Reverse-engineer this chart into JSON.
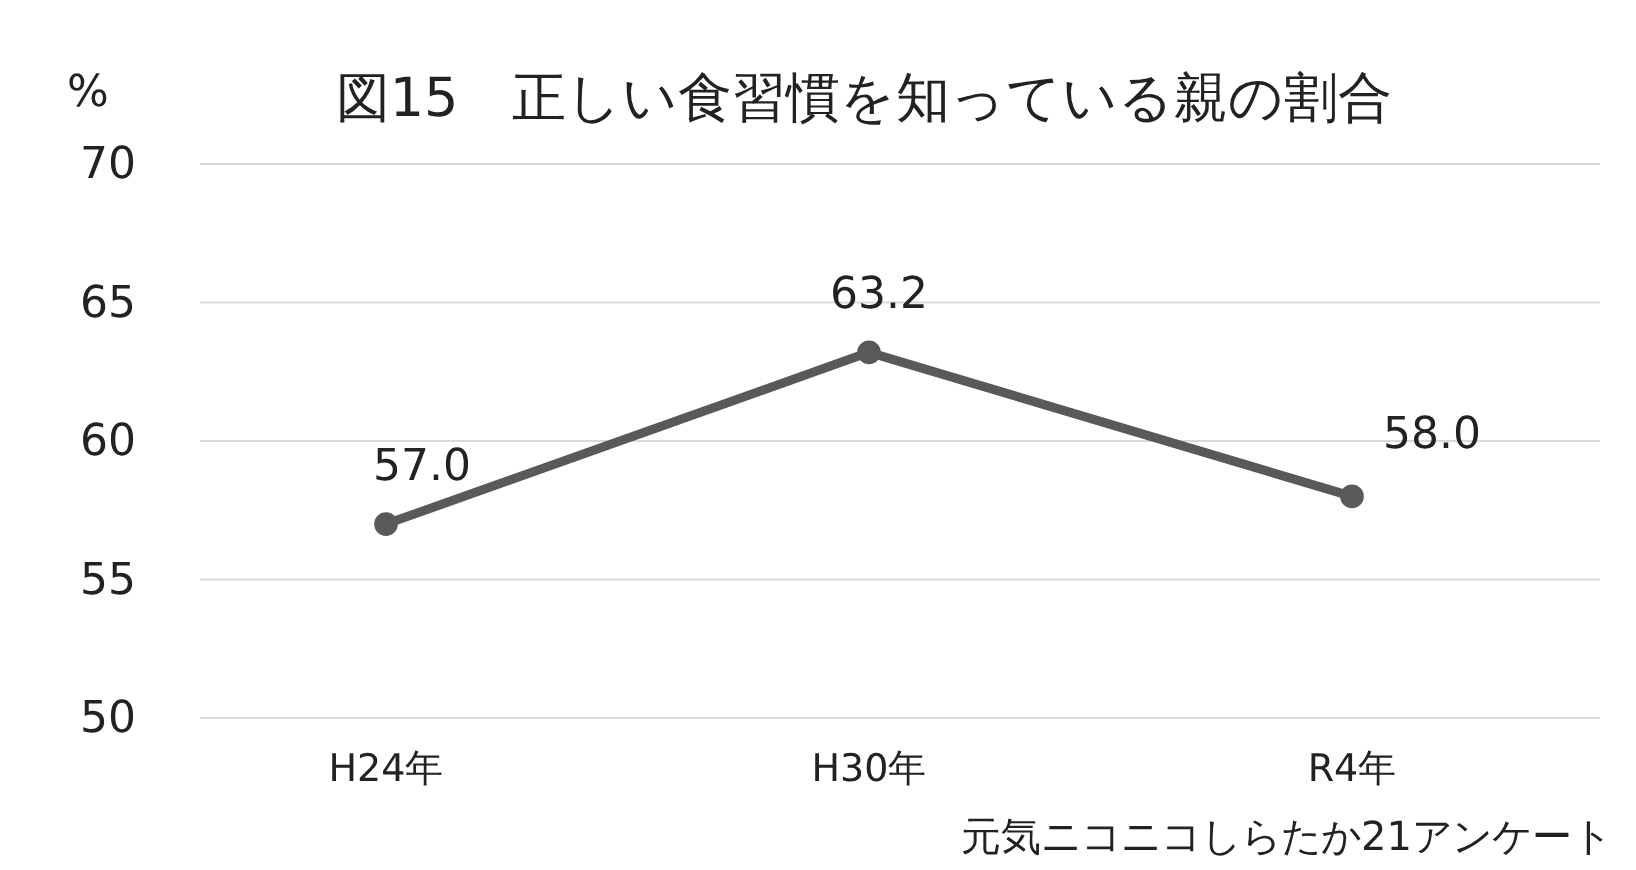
{
  "chart_data": {
    "type": "line",
    "title": "図15　正しい食習慣を知っている親の割合",
    "ylabel": "%",
    "categories": [
      "H24年",
      "H30年",
      "R4年"
    ],
    "series": [
      {
        "color": "#595959",
        "values": [
          57.0,
          63.2,
          58.0
        ]
      }
    ],
    "value_labels": [
      "57.0",
      "63.2",
      "58.0"
    ],
    "ylim": [
      50,
      70
    ],
    "yticks": [
      50,
      55,
      60,
      65,
      70
    ],
    "grid": "y",
    "marker": "circle",
    "line_style": "solid",
    "annotations": [
      "元気ニコニコしらたか21アンケート"
    ]
  }
}
